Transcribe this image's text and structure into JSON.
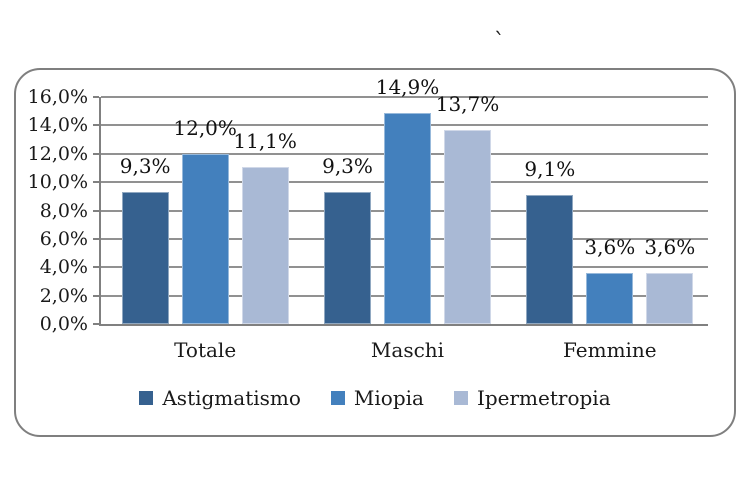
{
  "page": {
    "stray_char": "`"
  },
  "chart_data": {
    "type": "bar",
    "title": "",
    "xlabel": "",
    "ylabel": "",
    "categories": [
      "Totale",
      "Maschi",
      "Femmine"
    ],
    "series": [
      {
        "name": "Astigmatismo",
        "color": "#36618F",
        "values": [
          9.3,
          9.3,
          9.1
        ],
        "labels": [
          "9,3%",
          "9,3%",
          "9,1%"
        ]
      },
      {
        "name": "Miopia",
        "color": "#4380BD",
        "values": [
          12.0,
          14.9,
          3.6
        ],
        "labels": [
          "12,0%",
          "14,9%",
          "3,6%"
        ]
      },
      {
        "name": "Ipermetropia",
        "color": "#A9B9D5",
        "values": [
          11.1,
          13.7,
          3.6
        ],
        "labels": [
          "11,1%",
          "13,7%",
          "3,6%"
        ]
      }
    ],
    "y_axis": {
      "min": 0,
      "max": 16,
      "step": 2,
      "tick_labels": [
        "0,0%",
        "2,0%",
        "4,0%",
        "6,0%",
        "8,0%",
        "10,0%",
        "12,0%",
        "14,0%",
        "16,0%"
      ]
    },
    "ylim": [
      0,
      16
    ],
    "grid": true,
    "legend": {
      "position": "bottom",
      "entries": [
        "Astigmatismo",
        "Miopia",
        "Ipermetropia"
      ]
    },
    "style_colors": {
      "gridline": "#919191",
      "axis": "#808080",
      "frame_border": "#7f7f7f",
      "text": "#1a1a1a"
    }
  }
}
